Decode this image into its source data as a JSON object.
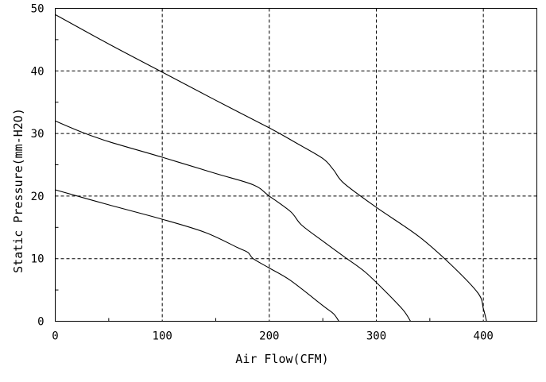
{
  "chart_data": {
    "type": "line",
    "title": "",
    "xlabel": "Air Flow(CFM)",
    "ylabel": "Static Pressure(mm-H2O)",
    "xlim": [
      0,
      450
    ],
    "ylim": [
      0,
      50
    ],
    "x_ticks": [
      0,
      100,
      200,
      300,
      400
    ],
    "y_ticks": [
      0,
      10,
      20,
      30,
      40,
      50
    ],
    "grid": true,
    "legend": "none",
    "series": [
      {
        "x": [
          0,
          50,
          100,
          150,
          200,
          225,
          250,
          260,
          270,
          300,
          340,
          370,
          395,
          400,
          403
        ],
        "y": [
          49,
          44.3,
          39.8,
          35.3,
          30.9,
          28.5,
          26,
          24.2,
          22,
          18.2,
          13.5,
          9,
          4.5,
          2,
          0
        ]
      },
      {
        "x": [
          0,
          25,
          50,
          100,
          150,
          185,
          200,
          220,
          230,
          250,
          270,
          290,
          310,
          325,
          332
        ],
        "y": [
          32,
          30.2,
          28.7,
          26.2,
          23.6,
          21.8,
          20,
          17.5,
          15.4,
          12.8,
          10.3,
          7.8,
          4.5,
          1.8,
          0
        ]
      },
      {
        "x": [
          0,
          50,
          100,
          140,
          170,
          180,
          185,
          200,
          220,
          250,
          260,
          265
        ],
        "y": [
          21,
          18.6,
          16.3,
          14.2,
          11.8,
          11,
          10,
          8.5,
          6.5,
          2.5,
          1.2,
          0
        ]
      }
    ]
  }
}
